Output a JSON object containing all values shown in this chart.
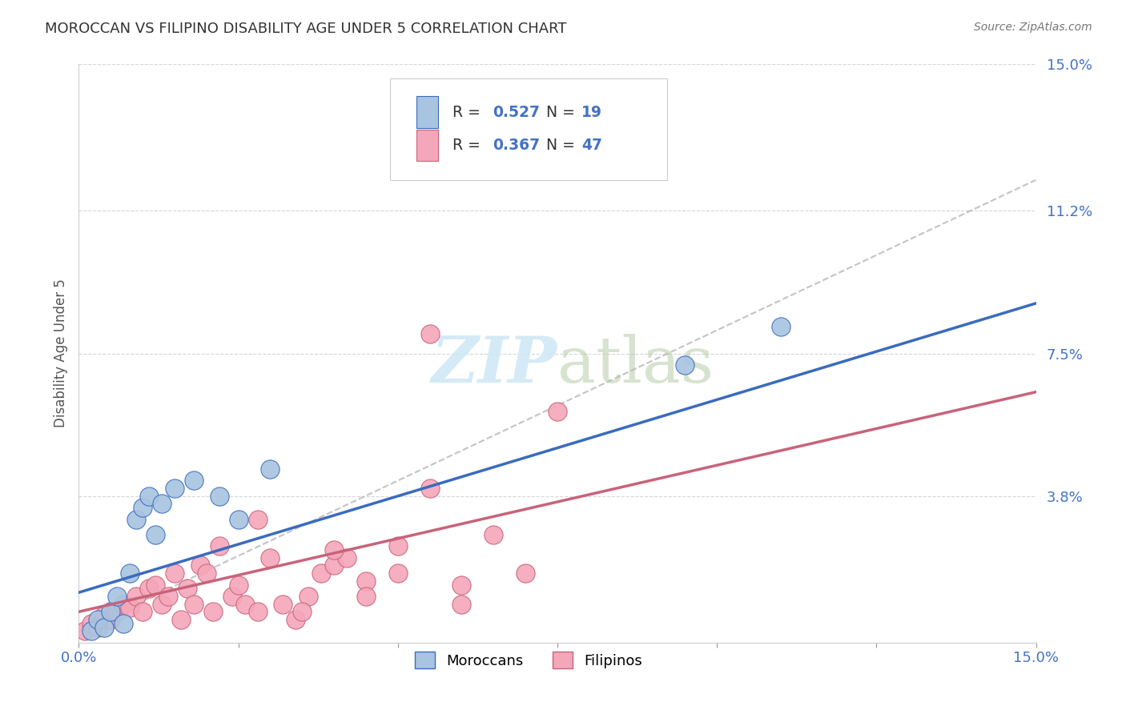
{
  "title": "MOROCCAN VS FILIPINO DISABILITY AGE UNDER 5 CORRELATION CHART",
  "source": "Source: ZipAtlas.com",
  "ylabel": "Disability Age Under 5",
  "xlabel": "",
  "xlim": [
    0.0,
    0.15
  ],
  "ylim": [
    0.0,
    0.15
  ],
  "ytick_labels_right": [
    "15.0%",
    "11.2%",
    "7.5%",
    "3.8%"
  ],
  "ytick_vals_right": [
    0.15,
    0.112,
    0.075,
    0.038
  ],
  "moroccan_R": 0.527,
  "moroccan_N": 19,
  "filipino_R": 0.367,
  "filipino_N": 47,
  "moroccan_color": "#a8c4e0",
  "filipino_color": "#f4a7b9",
  "moroccan_line_color": "#3a6bbf",
  "filipino_line_color": "#c8637a",
  "gray_dash_color": "#aaaaaa",
  "watermark_color": "#d0e8f5",
  "background_color": "#ffffff",
  "grid_color": "#cccccc",
  "right_axis_color": "#4472c4",
  "moroccan_x": [
    0.002,
    0.003,
    0.004,
    0.005,
    0.006,
    0.007,
    0.008,
    0.009,
    0.01,
    0.011,
    0.012,
    0.013,
    0.015,
    0.018,
    0.022,
    0.025,
    0.03,
    0.095,
    0.11
  ],
  "moroccan_y": [
    0.003,
    0.006,
    0.004,
    0.008,
    0.012,
    0.005,
    0.018,
    0.032,
    0.035,
    0.038,
    0.028,
    0.036,
    0.04,
    0.042,
    0.038,
    0.032,
    0.045,
    0.072,
    0.082
  ],
  "filipino_x": [
    0.001,
    0.002,
    0.003,
    0.004,
    0.005,
    0.006,
    0.007,
    0.008,
    0.009,
    0.01,
    0.011,
    0.012,
    0.013,
    0.014,
    0.015,
    0.016,
    0.017,
    0.018,
    0.019,
    0.02,
    0.021,
    0.022,
    0.024,
    0.025,
    0.026,
    0.028,
    0.03,
    0.032,
    0.034,
    0.036,
    0.038,
    0.04,
    0.042,
    0.045,
    0.05,
    0.055,
    0.06,
    0.065,
    0.07,
    0.075,
    0.028,
    0.035,
    0.04,
    0.045,
    0.05,
    0.055,
    0.06
  ],
  "filipino_y": [
    0.003,
    0.005,
    0.004,
    0.007,
    0.006,
    0.008,
    0.01,
    0.009,
    0.012,
    0.008,
    0.014,
    0.015,
    0.01,
    0.012,
    0.018,
    0.006,
    0.014,
    0.01,
    0.02,
    0.018,
    0.008,
    0.025,
    0.012,
    0.015,
    0.01,
    0.008,
    0.022,
    0.01,
    0.006,
    0.012,
    0.018,
    0.02,
    0.022,
    0.016,
    0.025,
    0.04,
    0.015,
    0.028,
    0.018,
    0.06,
    0.032,
    0.008,
    0.024,
    0.012,
    0.018,
    0.08,
    0.01
  ]
}
